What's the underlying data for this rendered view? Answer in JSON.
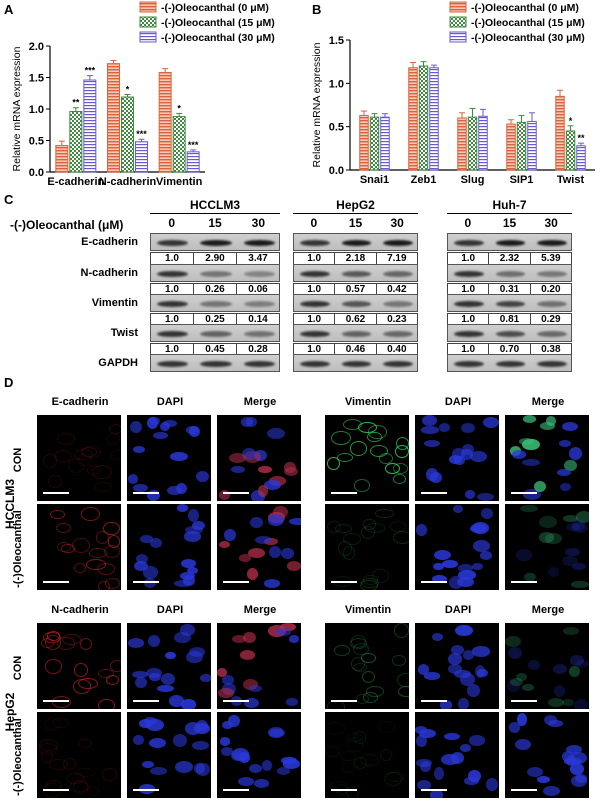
{
  "panel_labels": {
    "a": "A",
    "b": "B",
    "c": "C",
    "d": "D"
  },
  "colors": {
    "s0": "#d9633d",
    "s15": "#3e8a3e",
    "s30": "#6a5acd"
  },
  "chart_data": [
    {
      "type": "bar",
      "ylabel": "Relative mRNA expression",
      "categories": [
        "E-cadherin",
        "N-cadherin",
        "Vimentin"
      ],
      "ylim": [
        0,
        2.0
      ],
      "yticks": [
        "0.0",
        "0.5",
        "1.0",
        "1.5",
        "2.0"
      ],
      "series": [
        {
          "name": "-(-)Oleocanthal (0 μM)",
          "values": [
            0.42,
            1.72,
            1.58
          ],
          "errors": [
            0.07,
            0.05,
            0.06
          ],
          "stars": [
            "",
            "",
            ""
          ]
        },
        {
          "name": "-(-)Oleocanthal (15 μM)",
          "values": [
            0.96,
            1.19,
            0.88
          ],
          "errors": [
            0.06,
            0.04,
            0.05
          ],
          "stars": [
            "**",
            "*",
            "*"
          ]
        },
        {
          "name": "-(-)Oleocanthal (30 μM)",
          "values": [
            1.46,
            0.48,
            0.32
          ],
          "errors": [
            0.07,
            0.04,
            0.03
          ],
          "stars": [
            "***",
            "***",
            "***"
          ]
        }
      ]
    },
    {
      "type": "bar",
      "ylabel": "Relative mRNA expression",
      "categories": [
        "Snai1",
        "Zeb1",
        "Slug",
        "SIP1",
        "Twist"
      ],
      "ylim": [
        0,
        1.5
      ],
      "yticks": [
        "0.0",
        "0.5",
        "1.0",
        "1.5"
      ],
      "series": [
        {
          "name": "-(-)Oleocanthal (0 μM)",
          "values": [
            0.63,
            1.18,
            0.6,
            0.53,
            0.85
          ],
          "errors": [
            0.05,
            0.06,
            0.06,
            0.05,
            0.07
          ],
          "stars": [
            "",
            "",
            "",
            "",
            ""
          ]
        },
        {
          "name": "-(-)Oleocanthal (15 μM)",
          "values": [
            0.61,
            1.2,
            0.61,
            0.55,
            0.45
          ],
          "errors": [
            0.04,
            0.05,
            0.1,
            0.08,
            0.06
          ],
          "stars": [
            "",
            "",
            "",
            "",
            "*"
          ]
        },
        {
          "name": "-(-)Oleocanthal (30 μM)",
          "values": [
            0.61,
            1.18,
            0.62,
            0.56,
            0.28
          ],
          "errors": [
            0.04,
            0.03,
            0.08,
            0.1,
            0.03
          ],
          "stars": [
            "",
            "",
            "",
            "",
            "**"
          ]
        }
      ]
    }
  ],
  "western": {
    "treatment_label": "-(-)Oleocanthal (μM)",
    "doses": [
      "0",
      "15",
      "30"
    ],
    "row_labels": [
      "E-cadherin",
      "N-cadherin",
      "Vimentin",
      "Twist",
      "GAPDH"
    ],
    "cell_lines": [
      {
        "name": "HCCLM3",
        "values": [
          [
            "1.0",
            "2.90",
            "3.47"
          ],
          [
            "1.0",
            "0.26",
            "0.06"
          ],
          [
            "1.0",
            "0.25",
            "0.14"
          ],
          [
            "1.0",
            "0.45",
            "0.28"
          ]
        ]
      },
      {
        "name": "HepG2",
        "values": [
          [
            "1.0",
            "2.18",
            "7.19"
          ],
          [
            "1.0",
            "0.57",
            "0.42"
          ],
          [
            "1.0",
            "0.62",
            "0.23"
          ],
          [
            "1.0",
            "0.46",
            "0.40"
          ]
        ]
      },
      {
        "name": "Huh-7",
        "values": [
          [
            "1.0",
            "2.32",
            "5.39"
          ],
          [
            "1.0",
            "0.31",
            "0.20"
          ],
          [
            "1.0",
            "0.81",
            "0.29"
          ],
          [
            "1.0",
            "0.70",
            "0.38"
          ]
        ]
      }
    ]
  },
  "if": {
    "headers_top_left": [
      "E-cadherin",
      "DAPI",
      "Merge"
    ],
    "headers_top_right": [
      "Vimentin",
      "DAPI",
      "Merge"
    ],
    "headers_bottom_left": [
      "N-cadherin",
      "DAPI",
      "Merge"
    ],
    "headers_bottom_right": [
      "Vimentin",
      "DAPI",
      "Merge"
    ],
    "cell_line_top": "HCCLM3",
    "cell_line_bottom": "HepG2",
    "row_con": "CON",
    "row_treat": "-(-)Oleocanthal",
    "row_treat_bottom": "-(-)Oleocanthal"
  }
}
